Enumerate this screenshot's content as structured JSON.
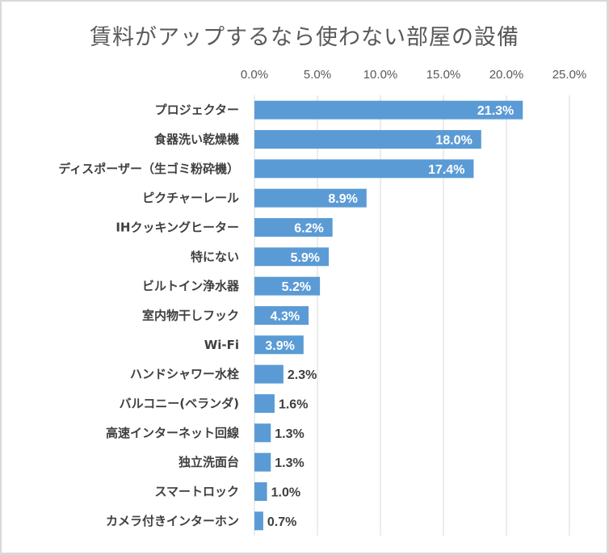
{
  "chart_data": {
    "type": "bar",
    "orientation": "horizontal",
    "title": "賃料がアップするなら使わない部屋の設備",
    "xlabel": "",
    "ylabel": "",
    "xlim": [
      0,
      25
    ],
    "xticks": [
      0,
      5,
      10,
      15,
      20,
      25
    ],
    "xtick_labels": [
      "0.0%",
      "5.0%",
      "10.0%",
      "15.0%",
      "20.0%",
      "25.0%"
    ],
    "axis_position": "top",
    "grid": true,
    "legend": "none",
    "bar_color": "#5b9bd5",
    "categories": [
      "プロジェクター",
      "食器洗い乾燥機",
      "ディスポーザー（生ゴミ粉砕機）",
      "ピクチャーレール",
      "IHクッキングヒーター",
      "特にない",
      "ビルトイン浄水器",
      "室内物干しフック",
      "Wi-Fi",
      "ハンドシャワー水栓",
      "バルコニー(ベランダ)",
      "高速インターネット回線",
      "独立洗面台",
      "スマートロック",
      "カメラ付きインターホン"
    ],
    "values": [
      21.3,
      18.0,
      17.4,
      8.9,
      6.2,
      5.9,
      5.2,
      4.3,
      3.9,
      2.3,
      1.6,
      1.3,
      1.3,
      1.0,
      0.7
    ],
    "data_labels": [
      "21.3%",
      "18.0%",
      "17.4%",
      "8.9%",
      "6.2%",
      "5.9%",
      "5.2%",
      "4.3%",
      "3.9%",
      "2.3%",
      "1.6%",
      "1.3%",
      "1.3%",
      "1.0%",
      "0.7%"
    ]
  }
}
